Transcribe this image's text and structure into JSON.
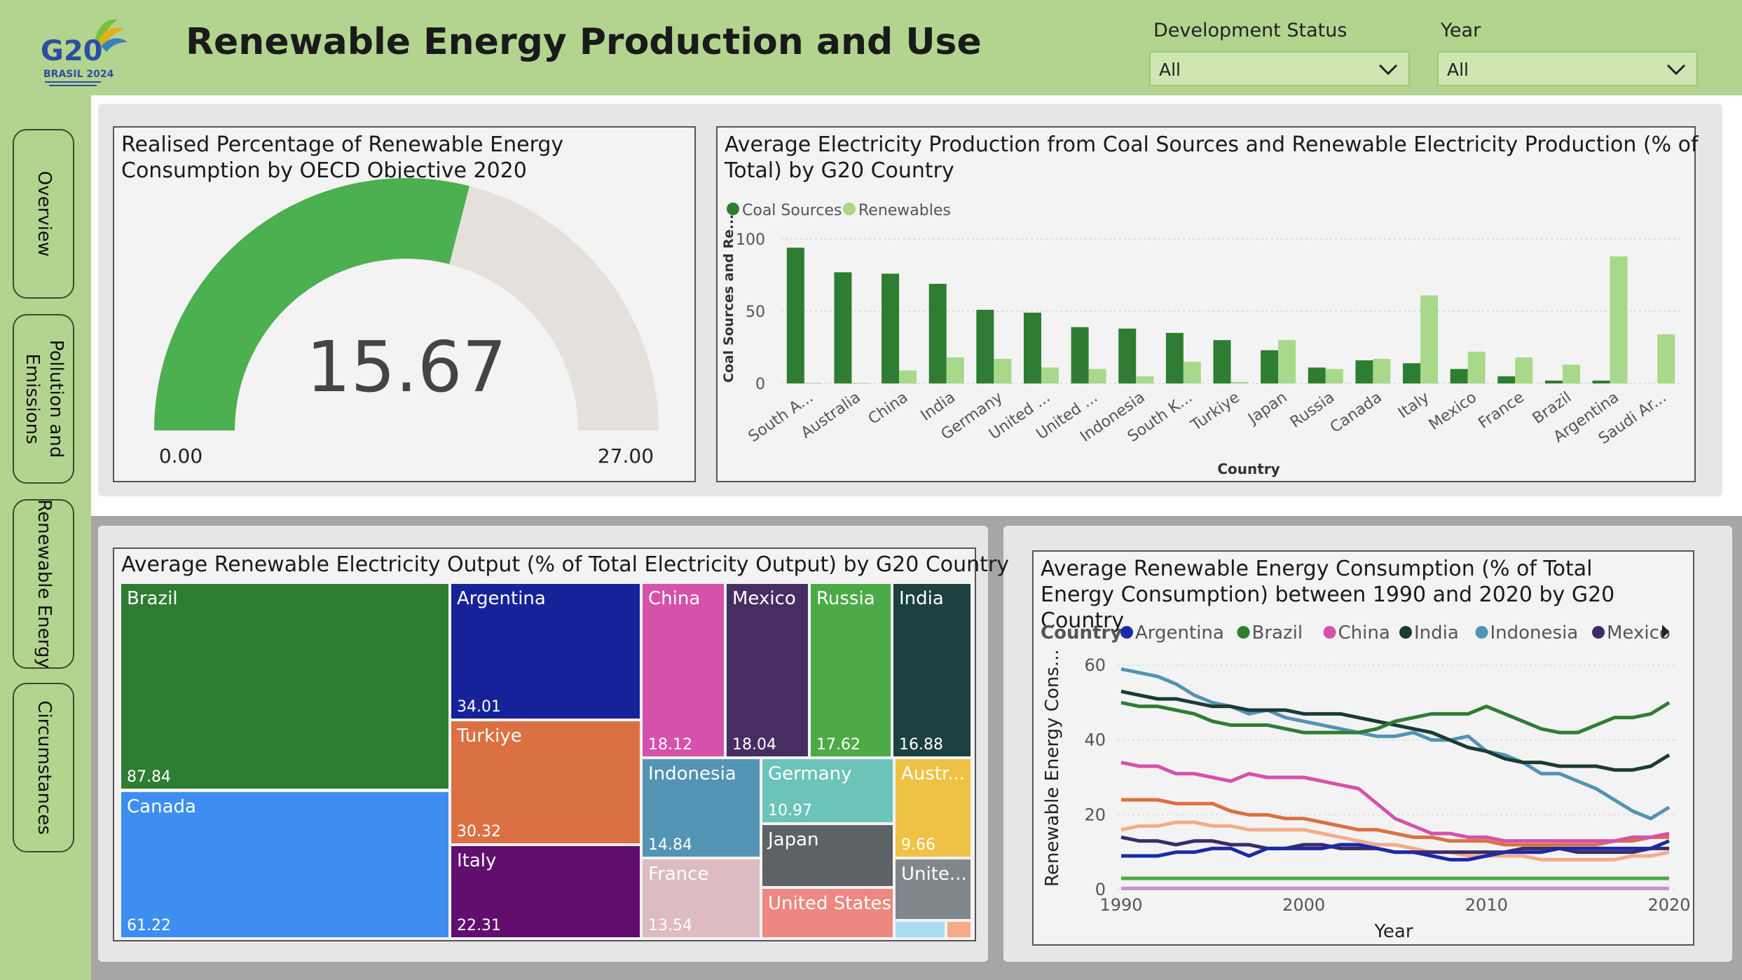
{
  "header": {
    "logo": {
      "main": "G20",
      "sub": "BRASIL 2024"
    },
    "title": "Renewable Energy Production and Use"
  },
  "filters": [
    {
      "label": "Development Status",
      "value": "All"
    },
    {
      "label": "Year",
      "value": "All"
    }
  ],
  "nav": [
    {
      "label": "Overview"
    },
    {
      "label": "Pollution and\nEmissions"
    },
    {
      "label": "Renewable Energy"
    },
    {
      "label": "Circumstances"
    }
  ],
  "colors": {
    "page_bg": "#b3d48e",
    "coal": "#2e7d32",
    "renewables": "#a8d88a",
    "gauge_fill": "#4caf50",
    "gauge_track": "#e4e0dc"
  },
  "chart_data": [
    {
      "type": "gauge",
      "title": "Realised Percentage of Renewable Energy Consumption by OECD Objective 2020",
      "value": 15.67,
      "value_label": "15.67",
      "min": 0,
      "max": 27,
      "min_label": "0.00",
      "max_label": "27.00",
      "colors": {
        "fill": "#4caf50",
        "track": "#e4e0dc"
      }
    },
    {
      "type": "bar",
      "title": "Average Electricity Production from Coal Sources and Renewable Electricity Production (% of Total) by G20 Country",
      "xlabel": "Country",
      "ylabel": "Coal Sources and Re...",
      "ylim": [
        0,
        100
      ],
      "yticks": [
        0,
        50,
        100
      ],
      "legend_position": "top-left",
      "categories": [
        "South A...",
        "Australia",
        "China",
        "India",
        "Germany",
        "United ...",
        "United ...",
        "Indonesia",
        "South K...",
        "Turkiye",
        "Japan",
        "Russia",
        "Canada",
        "Italy",
        "Mexico",
        "France",
        "Brazil",
        "Argentina",
        "Saudi Ar..."
      ],
      "series": [
        {
          "name": "Coal Sources",
          "color": "#2e7d32",
          "values": [
            94,
            77,
            76,
            69,
            51,
            49,
            39,
            38,
            35,
            30,
            23,
            11,
            16,
            14,
            10,
            5,
            2,
            2,
            0
          ]
        },
        {
          "name": "Renewables",
          "color": "#a8d88a",
          "values": [
            0.5,
            0.5,
            9,
            18,
            17,
            11,
            10,
            5,
            15,
            1,
            30,
            10,
            17,
            61,
            22,
            18,
            13,
            88,
            34
          ]
        }
      ]
    },
    {
      "type": "treemap",
      "title": "Average Renewable Electricity Output (% of Total Electricity Output) by G20 Country",
      "items": [
        {
          "name": "Brazil",
          "value": 87.84,
          "label": "87.84",
          "color": "#2e7d32"
        },
        {
          "name": "Canada",
          "value": 61.22,
          "label": "61.22",
          "color": "#3d8ef0"
        },
        {
          "name": "Argentina",
          "value": 34.01,
          "label": "34.01",
          "color": "#16229a"
        },
        {
          "name": "Turkiye",
          "value": 30.32,
          "label": "30.32",
          "color": "#db7043"
        },
        {
          "name": "Italy",
          "value": 22.31,
          "label": "22.31",
          "color": "#620e6e"
        },
        {
          "name": "China",
          "value": 18.12,
          "label": "18.12",
          "color": "#d551ab"
        },
        {
          "name": "Mexico",
          "value": 18.04,
          "label": "18.04",
          "color": "#462e63"
        },
        {
          "name": "Russia",
          "value": 17.62,
          "label": "17.62",
          "color": "#4caa47"
        },
        {
          "name": "India",
          "value": 16.88,
          "label": "16.88",
          "color": "#1d4040"
        },
        {
          "name": "Indonesia",
          "value": 14.84,
          "label": "14.84",
          "color": "#5393b4"
        },
        {
          "name": "France",
          "value": 13.54,
          "label": "13.54",
          "color": "#dcbcc0"
        },
        {
          "name": "Germany",
          "value": 10.97,
          "label": "10.97",
          "color": "#6cc3b9"
        },
        {
          "name": "Japan",
          "value": null,
          "label": "",
          "color": "#5c6266"
        },
        {
          "name": "United States",
          "value": null,
          "label": "",
          "color": "#ec8880"
        },
        {
          "name": "Austr...",
          "value": 9.66,
          "label": "9.66",
          "color": "#edc245"
        },
        {
          "name": "Unite...",
          "value": null,
          "label": "",
          "color": "#80878b"
        },
        {
          "name": "",
          "value": null,
          "label": "",
          "color": "#a9dcef"
        },
        {
          "name": "",
          "value": null,
          "label": "",
          "color": "#f4ab8a"
        }
      ]
    },
    {
      "type": "line",
      "title": "Average Renewable Energy Consumption (% of Total Energy Consumption) between 1990 and 2020 by G20 Country",
      "xlabel": "Year",
      "ylabel": "Renewable Energy Cons...",
      "xlim": [
        1990,
        2020
      ],
      "xticks": [
        1990,
        2000,
        2010,
        2020
      ],
      "ylim": [
        0,
        60
      ],
      "yticks": [
        0,
        20,
        40,
        60
      ],
      "legend_title": "Country",
      "legend_position": "top",
      "x": [
        1990,
        1991,
        1992,
        1993,
        1994,
        1995,
        1996,
        1997,
        1998,
        1999,
        2000,
        2001,
        2002,
        2003,
        2004,
        2005,
        2006,
        2007,
        2008,
        2009,
        2010,
        2011,
        2012,
        2013,
        2014,
        2015,
        2016,
        2017,
        2018,
        2019,
        2020
      ],
      "series": [
        {
          "name": "Argentina",
          "color": "#1a2aa8",
          "in_legend": true,
          "values": [
            9,
            9,
            9,
            10,
            10,
            11,
            11,
            9,
            11,
            11,
            11,
            11,
            12,
            12,
            11,
            10,
            10,
            9,
            8,
            8,
            9,
            10,
            10,
            10,
            11,
            11,
            11,
            11,
            11,
            11,
            13
          ]
        },
        {
          "name": "Brazil",
          "color": "#2e7d32",
          "in_legend": true,
          "values": [
            50,
            49,
            49,
            48,
            47,
            45,
            44,
            44,
            44,
            43,
            42,
            42,
            42,
            42,
            43,
            45,
            46,
            47,
            47,
            47,
            49,
            47,
            45,
            43,
            42,
            42,
            44,
            46,
            46,
            47,
            50
          ]
        },
        {
          "name": "China",
          "color": "#d551ab",
          "in_legend": true,
          "values": [
            34,
            33,
            33,
            31,
            31,
            30,
            29,
            31,
            30,
            30,
            30,
            29,
            28,
            27,
            23,
            19,
            17,
            15,
            15,
            14,
            14,
            13,
            13,
            13,
            13,
            13,
            13,
            13,
            14,
            14,
            15
          ]
        },
        {
          "name": "India",
          "color": "#1b3b33",
          "in_legend": true,
          "values": [
            53,
            52,
            51,
            51,
            50,
            49,
            49,
            48,
            48,
            48,
            47,
            47,
            47,
            46,
            45,
            44,
            43,
            42,
            40,
            38,
            37,
            35,
            34,
            34,
            33,
            33,
            33,
            32,
            32,
            33,
            36
          ]
        },
        {
          "name": "Indonesia",
          "color": "#5393b4",
          "in_legend": true,
          "values": [
            59,
            58,
            57,
            55,
            52,
            50,
            49,
            47,
            48,
            46,
            45,
            44,
            43,
            42,
            41,
            41,
            42,
            40,
            40,
            41,
            37,
            36,
            34,
            31,
            31,
            29,
            27,
            24,
            21,
            19,
            22
          ]
        },
        {
          "name": "Mexico",
          "color": "#3d2c67",
          "in_legend": true,
          "values": [
            14,
            13,
            13,
            12,
            13,
            13,
            12,
            12,
            11,
            11,
            12,
            12,
            11,
            11,
            11,
            10,
            10,
            10,
            10,
            10,
            10,
            10,
            11,
            11,
            11,
            10,
            10,
            10,
            10,
            11,
            11
          ]
        },
        {
          "name": "",
          "color": "#db7043",
          "in_legend": false,
          "values": [
            24,
            24,
            24,
            23,
            23,
            23,
            21,
            20,
            20,
            19,
            19,
            18,
            17,
            16,
            16,
            15,
            14,
            14,
            13,
            13,
            13,
            12,
            12,
            12,
            12,
            12,
            12,
            13,
            13,
            14,
            14
          ]
        },
        {
          "name": "",
          "color": "#f4ab8a",
          "in_legend": false,
          "values": [
            16,
            17,
            17,
            18,
            18,
            17,
            17,
            16,
            16,
            16,
            16,
            15,
            14,
            13,
            12,
            12,
            11,
            10,
            10,
            9,
            9,
            9,
            9,
            8,
            8,
            8,
            8,
            8,
            9,
            9,
            10
          ]
        },
        {
          "name": "",
          "color": "#4caa47",
          "in_legend": false,
          "values": [
            3,
            3,
            3,
            3,
            3,
            3,
            3,
            3,
            3,
            3,
            3,
            3,
            3,
            3,
            3,
            3,
            3,
            3,
            3,
            3,
            3,
            3,
            3,
            3,
            3,
            3,
            3,
            3,
            3,
            3,
            3
          ]
        },
        {
          "name": "",
          "color": "#c890c8",
          "in_legend": false,
          "values": [
            0.3,
            0.3,
            0.3,
            0.3,
            0.3,
            0.3,
            0.3,
            0.3,
            0.3,
            0.3,
            0.3,
            0.3,
            0.3,
            0.3,
            0.3,
            0.3,
            0.3,
            0.3,
            0.3,
            0.3,
            0.3,
            0.3,
            0.3,
            0.3,
            0.3,
            0.3,
            0.3,
            0.3,
            0.3,
            0.3,
            0.3
          ]
        }
      ]
    }
  ]
}
